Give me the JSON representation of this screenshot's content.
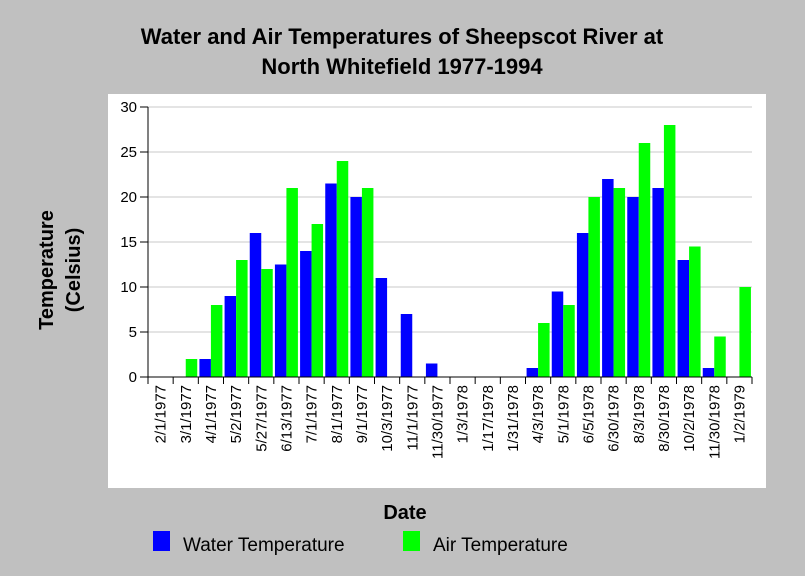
{
  "chart_data": {
    "type": "bar",
    "title_line1": "Water and Air Temperatures of Sheepscot River at",
    "title_line2": "North Whitefield 1977-1994",
    "xlabel": "Date",
    "ylabel_line1": "Temperature",
    "ylabel_line2": "(Celsius)",
    "ylim": [
      0,
      30
    ],
    "yticks": [
      0,
      5,
      10,
      15,
      20,
      25,
      30
    ],
    "grid": true,
    "legend_position": "bottom",
    "categories": [
      "2/1/1977",
      "3/1/1977",
      "4/1/1977",
      "5/2/1977",
      "5/27/1977",
      "6/13/1977",
      "7/1/1977",
      "8/1/1977",
      "9/1/1977",
      "10/3/1977",
      "11/1/1977",
      "11/30/1977",
      "1/3/1978",
      "1/17/1978",
      "1/31/1978",
      "4/3/1978",
      "5/1/1978",
      "6/5/1978",
      "6/30/1978",
      "8/3/1978",
      "8/30/1978",
      "10/2/1978",
      "11/30/1978",
      "1/2/1979"
    ],
    "series": [
      {
        "name": "Water Temperature",
        "color": "#0000ff",
        "values": [
          null,
          null,
          2,
          9,
          16,
          12.5,
          14,
          21.5,
          20,
          11,
          7,
          1.5,
          null,
          null,
          null,
          1,
          9.5,
          16,
          22,
          20,
          21,
          13,
          1,
          null
        ]
      },
      {
        "name": "Air Temperature",
        "color": "#00ff00",
        "values": [
          null,
          2,
          8,
          13,
          12,
          21,
          17,
          24,
          21,
          null,
          null,
          null,
          null,
          null,
          null,
          6,
          8,
          20,
          21,
          26,
          28,
          14.5,
          4.5,
          10
        ]
      }
    ]
  }
}
